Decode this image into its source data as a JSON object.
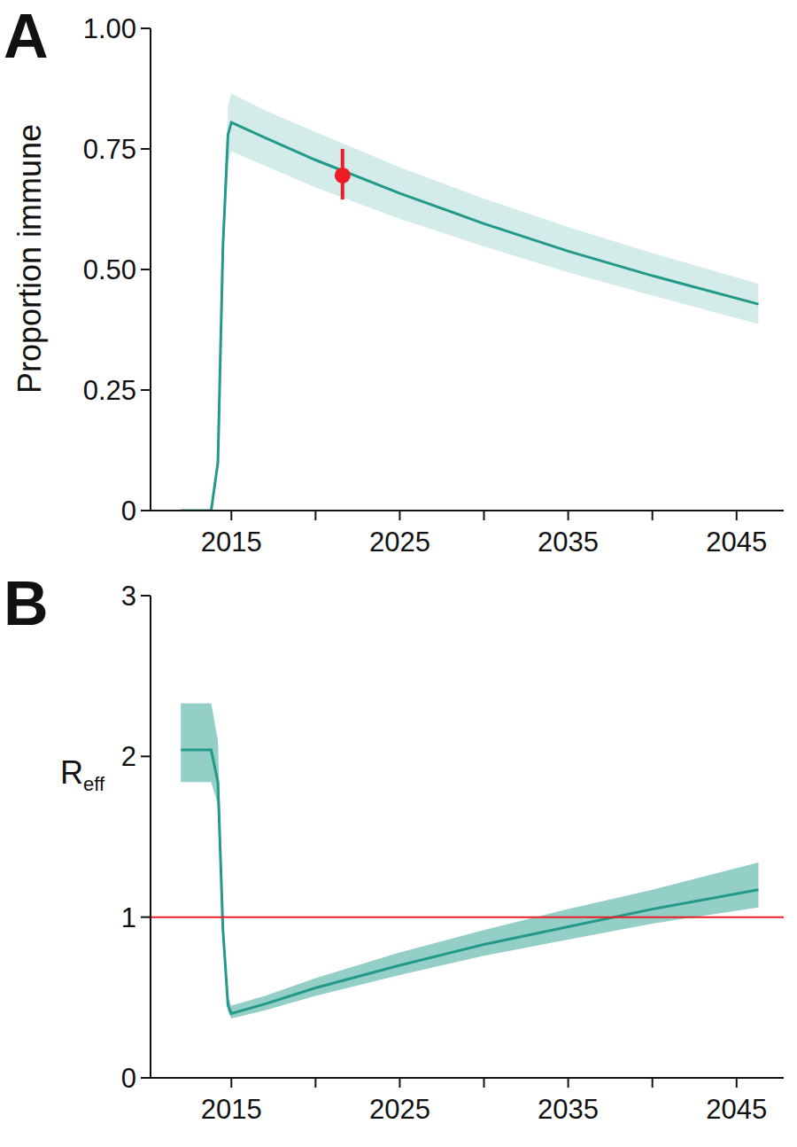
{
  "chart_data": [
    {
      "type": "line",
      "title": "A",
      "ylabel": "Proportion immune",
      "xlim": [
        2010.2,
        2047.8
      ],
      "xticks": [
        2015,
        2025,
        2035,
        2045
      ],
      "xticks_minor": [
        2020,
        2030,
        2040
      ],
      "ylim": [
        0,
        1
      ],
      "yticks": [
        {
          "value": 0,
          "label": "0"
        },
        {
          "value": 0.25,
          "label": "0.25"
        },
        {
          "value": 0.5,
          "label": "0.50"
        },
        {
          "value": 0.75,
          "label": "0.75"
        },
        {
          "value": 1,
          "label": "1.00"
        }
      ],
      "series": [
        {
          "type": "line",
          "color": "#23998a",
          "band_color": "#d3ecea",
          "x": [
            2012,
            2013.8,
            2014.2,
            2014.5,
            2014.8,
            2015,
            2017,
            2020,
            2025,
            2030,
            2035,
            2040,
            2046.3
          ],
          "values": [
            0,
            0,
            0.1,
            0.55,
            0.78,
            0.805,
            0.773,
            0.727,
            0.658,
            0.595,
            0.538,
            0.487,
            0.428
          ],
          "lower": [
            0,
            0,
            0.08,
            0.5,
            0.72,
            0.745,
            0.715,
            0.67,
            0.605,
            0.548,
            0.494,
            0.446,
            0.387
          ],
          "upper": [
            0,
            0,
            0.12,
            0.6,
            0.84,
            0.865,
            0.83,
            0.785,
            0.712,
            0.647,
            0.588,
            0.534,
            0.47
          ]
        },
        {
          "type": "scatter",
          "color": "#ee1c25",
          "marker": "circle",
          "x": [
            2021.6
          ],
          "values": [
            0.695
          ],
          "lower": [
            0.645
          ],
          "upper": [
            0.75
          ]
        }
      ]
    },
    {
      "type": "line",
      "title": "B",
      "ylabel": "R",
      "ylabel_subscript": "eff",
      "xlim": [
        2010.2,
        2047.8
      ],
      "xticks": [
        2015,
        2025,
        2035,
        2045
      ],
      "xticks_minor": [
        2020,
        2030,
        2040
      ],
      "ylim": [
        0,
        3
      ],
      "yticks": [
        0,
        1,
        2,
        3
      ],
      "hline": {
        "value": 1,
        "color": "#ee1c25"
      },
      "series": [
        {
          "type": "line",
          "color": "#23998a",
          "band_color": "#93cfc6",
          "x": [
            2012,
            2013.8,
            2014.2,
            2014.5,
            2014.8,
            2015,
            2017,
            2020,
            2025,
            2030,
            2035,
            2040,
            2046.3
          ],
          "values": [
            2.04,
            2.04,
            1.84,
            0.92,
            0.45,
            0.4,
            0.46,
            0.56,
            0.7,
            0.83,
            0.94,
            1.05,
            1.17
          ],
          "lower": [
            1.84,
            1.84,
            1.7,
            0.85,
            0.41,
            0.37,
            0.42,
            0.51,
            0.64,
            0.76,
            0.86,
            0.96,
            1.06
          ],
          "upper": [
            2.33,
            2.33,
            2.1,
            1.0,
            0.5,
            0.45,
            0.51,
            0.62,
            0.78,
            0.92,
            1.05,
            1.17,
            1.34
          ]
        }
      ]
    }
  ]
}
